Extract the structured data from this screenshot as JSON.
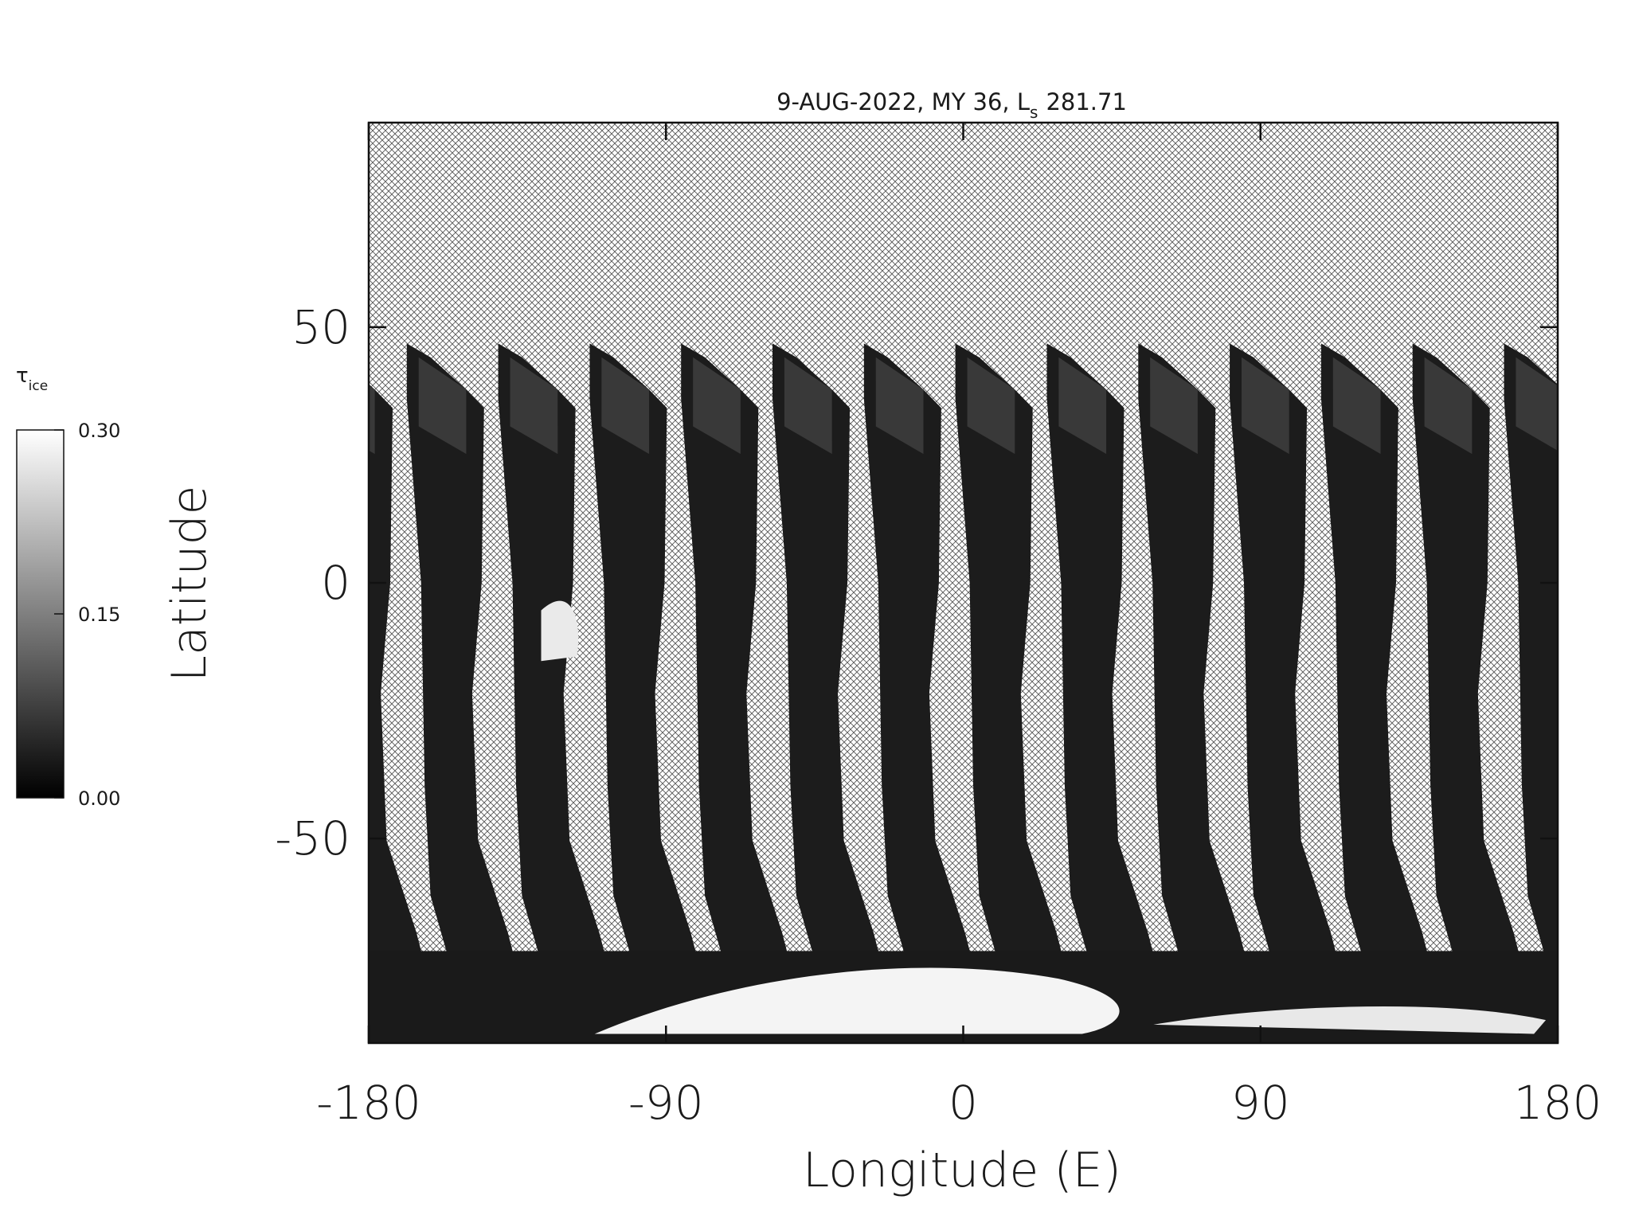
{
  "chart_data": {
    "type": "map",
    "title": "9-AUG-2022, MY 36, L",
    "title_subscript": "s",
    "title_value": "281.71",
    "x_label": "Longitude (E)",
    "y_label": "Latitude",
    "xlim": [
      -180,
      180
    ],
    "xticks": [
      -180,
      -90,
      0,
      90,
      180
    ],
    "ylim": [
      -90,
      90
    ],
    "yticks": [
      -50,
      0,
      50
    ],
    "colorbar": {
      "label": "τ",
      "label_subscript": "ice",
      "range": [
        0,
        0.3
      ],
      "ticks": [
        {
          "value": 0,
          "label": "0.00"
        },
        {
          "value": 0.15,
          "label": "0.15"
        },
        {
          "value": 0.3,
          "label": "0.30"
        }
      ],
      "colors": [
        "#000000",
        "#ffffff"
      ]
    }
  }
}
